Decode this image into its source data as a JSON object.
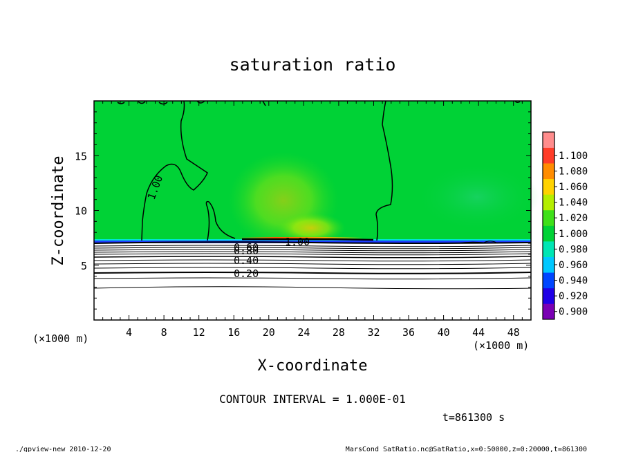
{
  "chart_data": {
    "type": "heatmap",
    "title": "saturation ratio",
    "xlabel": "X-coordinate",
    "ylabel": "Z-coordinate",
    "x_unit": "(×1000 m)",
    "y_unit": "(×1000 m)",
    "xlim": [
      0,
      50
    ],
    "ylim": [
      0,
      20
    ],
    "x_ticks": [
      4,
      8,
      12,
      16,
      20,
      24,
      28,
      32,
      36,
      40,
      44,
      48
    ],
    "y_ticks": [
      5,
      10,
      15
    ],
    "colorbar": {
      "levels": [
        0.9,
        0.92,
        0.94,
        0.96,
        0.98,
        1.0,
        1.02,
        1.04,
        1.06,
        1.08,
        1.1
      ],
      "labels": [
        "0.900",
        "0.920",
        "0.940",
        "0.960",
        "0.980",
        "1.000",
        "1.020",
        "1.040",
        "1.060",
        "1.080",
        "1.100"
      ],
      "colors": [
        "#7a00b4",
        "#1f00e6",
        "#0046ff",
        "#00c8ff",
        "#00e6b4",
        "#00d236",
        "#3fe01a",
        "#b4ee00",
        "#ffd200",
        "#ff8c00",
        "#ff3c28",
        "#ff8c8c"
      ]
    },
    "contour_labels": [
      {
        "text": "1.00",
        "x": 2.5,
        "z": 12.0,
        "rotation": -70
      },
      {
        "text": "1.00",
        "x": 23.0,
        "z": 7.2
      },
      {
        "text": "0.60",
        "x": 17.5,
        "z": 6.6
      },
      {
        "text": "0.80",
        "x": 17.5,
        "z": 6.4
      },
      {
        "text": "0.40",
        "x": 17.5,
        "z": 5.5
      },
      {
        "text": "0.20",
        "x": 17.5,
        "z": 4.3
      }
    ],
    "contour_interval": "CONTOUR INTERVAL = 1.000E-01",
    "time": "t=861300 s"
  },
  "footer": {
    "left": "./gpview-new   2010-12-20",
    "right": "MarsCond_SatRatio.nc@SatRatio,x=0:50000,z=0:20000,t=861300"
  }
}
